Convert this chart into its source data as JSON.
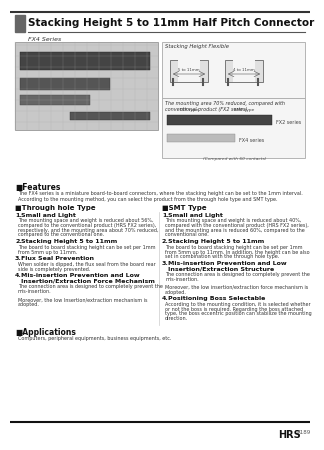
{
  "title": "Stacking Height 5 to 11mm Half Pitch Connector",
  "subtitle": "FX4 Series",
  "bg_color": "#ffffff",
  "title_bar_color": "#666666",
  "features_header": "■Features",
  "features_intro_1": "The FX4 series is a miniature board-to-board connectors, where the stacking height can be set to the 1mm interval.",
  "features_intro_2": "According to the mounting method, you can select the product from the through hole type and SMT type.",
  "through_hole_header": "■Through hole Type",
  "smt_header": "■SMT Type",
  "through_features": [
    {
      "num": "1.",
      "title": "Small and Light",
      "title2": "",
      "body": [
        "The mounting space and weight is reduced about 56%,",
        "compared to the conventional product (HRS FX2 series),",
        "respectively, and the mounting area about 70% reduced,",
        "compared to the conventional one."
      ]
    },
    {
      "num": "2.",
      "title": "Stacking Height 5 to 11mm",
      "title2": "",
      "body": [
        "The board to board stacking height can be set per 1mm",
        "from 5mm up to 11mm."
      ]
    },
    {
      "num": "3.",
      "title": "Flux Seal Prevention",
      "title2": "",
      "body": [
        "When solder is dipped, the flux seal from the board rear",
        "side is completely prevented."
      ]
    },
    {
      "num": "4.",
      "title": "Mis-insertion Prevention and Low",
      "title2": "Insertion/Extraction Force Mechanism",
      "body": [
        "The connection area is designed to completely prevent the",
        "mis-insertion.",
        "",
        "Moreover, the low Insertion/extraction mechanism is",
        "adopted."
      ]
    }
  ],
  "smt_features": [
    {
      "num": "1.",
      "title": "Small and Light",
      "title2": "",
      "body": [
        "This mounting space and weight is reduced about 40%,",
        "compared with the conventional product (HRS FX2 series),",
        "and the mounting area is reduced 60%, compared to the",
        "conventional one."
      ]
    },
    {
      "num": "2.",
      "title": "Stacking Height 5 to 11mm",
      "title2": "",
      "body": [
        "The board to board stacking height can be set per 1mm",
        "from 5mm up to 11mm. In addition, the height can be also",
        "set in combination with the through hole type."
      ]
    },
    {
      "num": "3.",
      "title": "Mis-insertion Prevention and Low",
      "title2": "Insertion/Extraction Structure",
      "body": [
        "The connection area is designed to completely prevent the",
        "mis-insertion.",
        "",
        "Moreover, the low insertion/extraction force mechanism is",
        "adopted."
      ]
    },
    {
      "num": "4.",
      "title": "Positioning Boss Selectable",
      "title2": "",
      "body": [
        "According to the mounting condition, it is selected whether",
        "or not the boss is required. Regarding the boss attached",
        "type, the boss eccentric position can stabilize the mounting",
        "direction."
      ]
    }
  ],
  "applications_header": "■Applications",
  "applications_text": "Computers, peripheral equipments, business equipments, etc.",
  "footer_brand": "HRS",
  "footer_page": "A189",
  "stacking_height_label": "Stacking Height Flexible",
  "mounting_area_label": "The mounting area 70% reduced, compared with",
  "mounting_area_label2": "conventional product (FX2 series)",
  "compared_label": "(Compared with 60 contacts)",
  "fx2_label": "FX2 series",
  "fx4_label": "FX4 series",
  "dip_label": "DIP type",
  "smt_label": "SMT type"
}
